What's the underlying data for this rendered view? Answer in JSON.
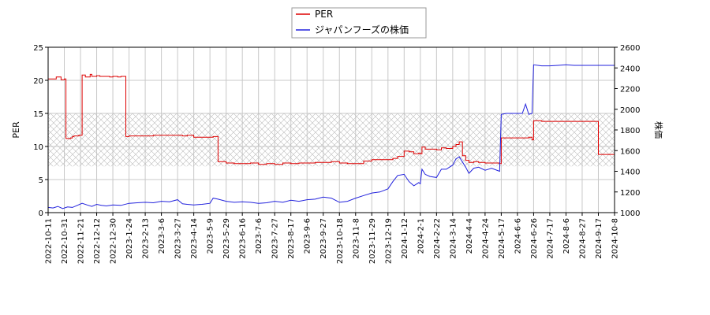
{
  "chart_data": {
    "type": "line",
    "ylabel_left": "PER",
    "ylabel_right": "株価",
    "ylim_left": [
      0,
      25
    ],
    "ylim_right": [
      1000,
      2600
    ],
    "yticks_left": [
      "0",
      "5",
      "10",
      "15",
      "20",
      "25"
    ],
    "yticks_right": [
      "1000",
      "1200",
      "1400",
      "1600",
      "1800",
      "2000",
      "2200",
      "2400",
      "2600"
    ],
    "shaded_band_left": [
      7,
      15
    ],
    "grid": true,
    "legend_placement": "top-center",
    "x_tick_labels": [
      "2022-10-11",
      "2022-10-31",
      "2022-11-21",
      "2022-12-12",
      "2022-12-30",
      "2023-1-24",
      "2023-2-13",
      "2023-3-6",
      "2023-3-27",
      "2023-4-14",
      "2023-5-9",
      "2023-5-29",
      "2023-6-16",
      "2023-7-6",
      "2023-7-27",
      "2023-8-17",
      "2023-9-6",
      "2023-9-27",
      "2023-10-18",
      "2023-11-8",
      "2023-11-29",
      "2023-12-19",
      "2024-1-12",
      "2024-2-1",
      "2024-2-22",
      "2024-3-14",
      "2024-4-4",
      "2024-4-24",
      "2024-5-17",
      "2024-6-6",
      "2024-6-26",
      "2024-7-17",
      "2024-8-6",
      "2024-8-27",
      "2024-9-17",
      "2024-10-8"
    ],
    "x_tick_index": [
      0,
      1,
      2,
      3,
      4,
      5,
      6,
      7,
      8,
      9,
      10,
      11,
      12,
      13,
      14,
      15,
      16,
      17,
      18,
      19,
      20,
      21,
      22,
      23,
      24,
      25,
      26,
      27,
      28,
      29,
      30,
      31,
      32,
      33,
      34,
      35
    ],
    "series": [
      {
        "name": "PER",
        "color": "#dd0000",
        "axis": "left",
        "x": [
          0,
          0.5,
          0.8,
          1.0,
          1.1,
          1.4,
          1.5,
          1.6,
          1.9,
          2.1,
          2.3,
          2.4,
          2.6,
          2.7,
          3.0,
          3.2,
          3.5,
          3.8,
          4.0,
          4.3,
          4.5,
          4.8,
          5.0,
          5.1,
          5.5,
          6.0,
          6.5,
          7.0,
          7.5,
          8.0,
          8.3,
          8.6,
          9.0,
          9.5,
          10.0,
          10.2,
          10.5,
          11.0,
          11.5,
          12.0,
          12.5,
          13.0,
          13.5,
          14.0,
          14.5,
          15.0,
          15.5,
          16.0,
          16.5,
          17.0,
          17.5,
          18.0,
          18.5,
          19.0,
          19.5,
          20.0,
          20.5,
          21.0,
          21.3,
          21.6,
          22.0,
          22.3,
          22.6,
          22.9,
          23.0,
          23.1,
          23.3,
          23.6,
          24.0,
          24.3,
          24.6,
          25.0,
          25.2,
          25.4,
          25.6,
          25.8,
          26.0,
          26.3,
          26.6,
          27.0,
          27.4,
          27.9,
          28.0,
          28.3,
          28.7,
          29.0,
          29.3,
          29.7,
          29.9,
          30.0,
          30.5,
          31.0,
          31.5,
          32.0,
          32.5,
          33.0,
          33.5,
          33.7,
          34.0,
          34.5,
          35.0,
          35.2
        ],
        "values": [
          20.2,
          20.5,
          20.1,
          20.2,
          11.2,
          11.3,
          11.5,
          11.6,
          11.7,
          20.8,
          20.5,
          20.5,
          20.9,
          20.6,
          20.7,
          20.6,
          20.6,
          20.5,
          20.6,
          20.5,
          20.6,
          11.5,
          11.6,
          11.6,
          11.6,
          11.6,
          11.7,
          11.7,
          11.7,
          11.7,
          11.6,
          11.7,
          11.4,
          11.4,
          11.4,
          11.5,
          7.7,
          7.5,
          7.4,
          7.4,
          7.5,
          7.3,
          7.4,
          7.3,
          7.5,
          7.4,
          7.5,
          7.5,
          7.6,
          7.6,
          7.7,
          7.5,
          7.4,
          7.4,
          7.8,
          8.0,
          8.0,
          8.0,
          8.2,
          8.5,
          9.3,
          9.2,
          8.9,
          9.0,
          8.9,
          9.9,
          9.6,
          9.6,
          9.5,
          9.8,
          9.7,
          10.0,
          10.3,
          10.7,
          8.6,
          7.9,
          7.6,
          7.7,
          7.6,
          7.5,
          7.5,
          7.4,
          11.3,
          11.3,
          11.3,
          11.3,
          11.3,
          11.4,
          11.0,
          13.9,
          13.8,
          13.8,
          13.8,
          13.8,
          13.8,
          13.8,
          13.8,
          13.8,
          8.8,
          8.8,
          8.8,
          8.8
        ]
      },
      {
        "name": "ジャパンフーズの株価",
        "color": "#2222dd",
        "axis": "right",
        "x": [
          0,
          0.3,
          0.6,
          0.9,
          1.2,
          1.5,
          1.8,
          2.1,
          2.4,
          2.7,
          3.0,
          3.3,
          3.6,
          4.0,
          4.5,
          5.0,
          5.5,
          6.0,
          6.5,
          7.0,
          7.5,
          8.0,
          8.3,
          8.6,
          9.0,
          9.5,
          10.0,
          10.2,
          10.5,
          11.0,
          11.5,
          12.0,
          12.5,
          13.0,
          13.5,
          14.0,
          14.5,
          15.0,
          15.5,
          16.0,
          16.5,
          17.0,
          17.5,
          18.0,
          18.5,
          19.0,
          19.5,
          20.0,
          20.5,
          21.0,
          21.3,
          21.6,
          22.0,
          22.3,
          22.6,
          22.9,
          23.0,
          23.1,
          23.3,
          23.6,
          24.0,
          24.3,
          24.6,
          25.0,
          25.2,
          25.4,
          25.6,
          25.8,
          26.0,
          26.3,
          26.6,
          27.0,
          27.4,
          27.9,
          28.0,
          28.3,
          28.7,
          29.0,
          29.3,
          29.5,
          29.7,
          29.9,
          30.0,
          30.5,
          31.0,
          31.5,
          32.0,
          32.5,
          33.0,
          33.5,
          34.0,
          34.5,
          35.0,
          35.2
        ],
        "values": [
          1050,
          1045,
          1060,
          1040,
          1055,
          1050,
          1070,
          1090,
          1075,
          1060,
          1080,
          1070,
          1065,
          1075,
          1070,
          1090,
          1095,
          1100,
          1095,
          1110,
          1105,
          1125,
          1085,
          1080,
          1075,
          1080,
          1090,
          1140,
          1130,
          1110,
          1100,
          1105,
          1100,
          1090,
          1095,
          1110,
          1100,
          1120,
          1110,
          1125,
          1130,
          1150,
          1140,
          1100,
          1110,
          1140,
          1165,
          1190,
          1200,
          1230,
          1300,
          1360,
          1370,
          1300,
          1260,
          1290,
          1280,
          1420,
          1370,
          1350,
          1340,
          1420,
          1420,
          1460,
          1520,
          1540,
          1490,
          1440,
          1380,
          1430,
          1440,
          1410,
          1430,
          1400,
          1950,
          1960,
          1960,
          1960,
          1960,
          2050,
          1950,
          1960,
          2430,
          2420,
          2420,
          2425,
          2430,
          2425,
          2425,
          2425,
          2425,
          2425,
          2425,
          2425
        ]
      }
    ]
  }
}
